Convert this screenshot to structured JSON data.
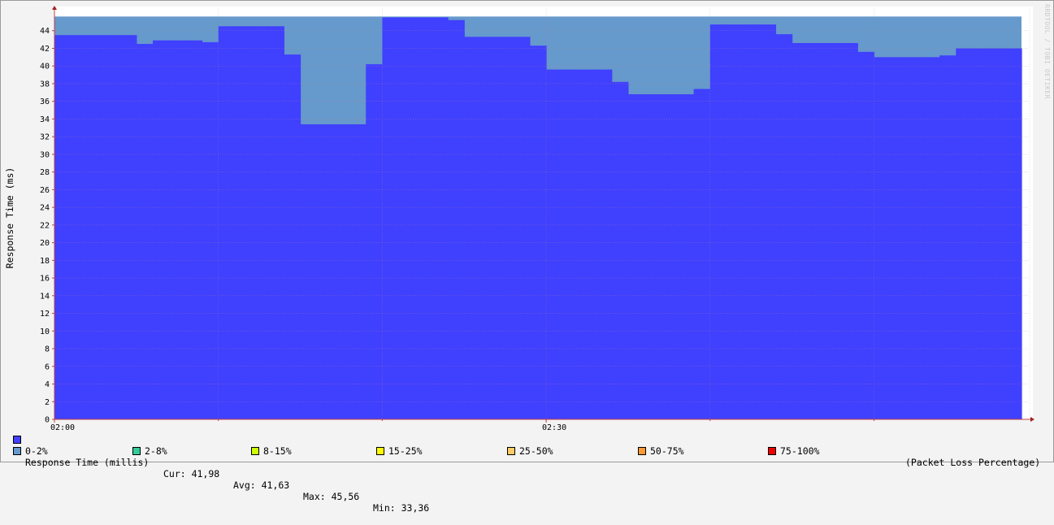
{
  "chart_data": {
    "type": "area",
    "ylabel": "Response Time (ms)",
    "ylim": [
      0,
      46
    ],
    "yticks": [
      0,
      2,
      4,
      6,
      8,
      10,
      12,
      14,
      16,
      18,
      20,
      22,
      24,
      26,
      28,
      30,
      32,
      34,
      36,
      38,
      40,
      42,
      44
    ],
    "xtick_labels": [
      "02:00",
      "02:30"
    ],
    "xlim": [
      "02:00",
      "02:59"
    ],
    "grid": true,
    "series": [
      {
        "name": "Response Time (millis)",
        "color": "#4040ff",
        "x": [
          "02:00",
          "02:01",
          "02:02",
          "02:03",
          "02:04",
          "02:05",
          "02:06",
          "02:07",
          "02:08",
          "02:09",
          "02:10",
          "02:11",
          "02:12",
          "02:13",
          "02:14",
          "02:15",
          "02:16",
          "02:17",
          "02:18",
          "02:19",
          "02:20",
          "02:21",
          "02:22",
          "02:23",
          "02:24",
          "02:25",
          "02:26",
          "02:27",
          "02:28",
          "02:29",
          "02:30",
          "02:31",
          "02:32",
          "02:33",
          "02:34",
          "02:35",
          "02:36",
          "02:37",
          "02:38",
          "02:39",
          "02:40",
          "02:41",
          "02:42",
          "02:43",
          "02:44",
          "02:45",
          "02:46",
          "02:47",
          "02:48",
          "02:49",
          "02:50",
          "02:51",
          "02:52",
          "02:53",
          "02:54",
          "02:55",
          "02:56",
          "02:57",
          "02:58"
        ],
        "y": [
          43.5,
          43.5,
          43.5,
          43.5,
          43.5,
          42.5,
          42.9,
          42.9,
          42.9,
          42.7,
          44.5,
          44.5,
          44.5,
          44.5,
          41.3,
          33.4,
          33.4,
          33.4,
          33.4,
          40.2,
          45.5,
          45.5,
          45.5,
          45.5,
          45.2,
          43.3,
          43.3,
          43.3,
          43.3,
          42.3,
          39.6,
          39.6,
          39.6,
          39.6,
          38.2,
          36.8,
          36.8,
          36.8,
          36.8,
          37.4,
          44.7,
          44.7,
          44.7,
          44.7,
          43.6,
          42.6,
          42.6,
          42.6,
          42.6,
          41.6,
          41.0,
          41.0,
          41.0,
          41.0,
          41.2,
          42.0,
          42.0,
          42.0,
          42.0
        ]
      },
      {
        "name": "0-2%",
        "color": "#6699cc",
        "x": [
          "02:00",
          "02:58"
        ],
        "y": [
          45.6,
          45.6
        ]
      }
    ],
    "legend": {
      "response_label": "Response Time (millis)",
      "cur": "Cur: 41,98",
      "avg": "Avg: 41,63",
      "max": "Max: 45,56",
      "min": "Min: 33,36",
      "loss_items": [
        {
          "label": "0-2%",
          "color": "#6699cc"
        },
        {
          "label": "2-8%",
          "color": "#33cc99"
        },
        {
          "label": "8-15%",
          "color": "#ccff00"
        },
        {
          "label": "15-25%",
          "color": "#ffff00"
        },
        {
          "label": "25-50%",
          "color": "#ffcc66"
        },
        {
          "label": "50-75%",
          "color": "#ff9933"
        },
        {
          "label": "75-100%",
          "color": "#ee0000"
        }
      ],
      "loss_title": "(Packet Loss Percentage)"
    },
    "credit": "RRDTOOL / TOBI OETIKER"
  }
}
